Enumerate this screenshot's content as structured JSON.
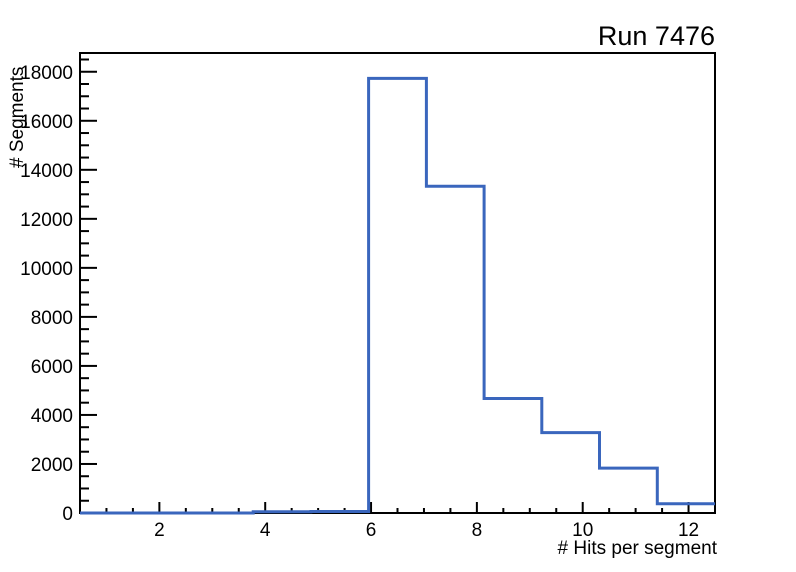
{
  "chart_data": {
    "type": "bar",
    "style": "step-histogram-outline",
    "title": "Run 7476",
    "xlabel": "# Hits per segment",
    "ylabel": "# Segments",
    "xlim": [
      0.5,
      12.5
    ],
    "ylim": [
      0,
      18765
    ],
    "bin_edges": [
      0.5,
      1.5909,
      2.6818,
      3.7727,
      4.8636,
      5.9545,
      7.0455,
      8.1364,
      9.2273,
      10.3182,
      11.4091,
      12.5
    ],
    "counts": [
      0,
      0,
      0,
      50,
      60,
      17730,
      13330,
      4670,
      3280,
      1830,
      380
    ],
    "x_major_ticks": [
      2,
      4,
      6,
      8,
      10,
      12
    ],
    "x_major_tick_labels": [
      "2",
      "4",
      "6",
      "8",
      "10",
      "12"
    ],
    "x_minor_tick_step": 0.5,
    "y_major_tick_step": 2000,
    "y_minor_tick_step": 500,
    "y_major_tick_labels": [
      "0",
      "2000",
      "4000",
      "6000",
      "8000",
      "10000",
      "12000",
      "14000",
      "16000",
      "18000"
    ],
    "line_color": "#3a66bd",
    "axis_color": "#000000",
    "background_color": "#ffffff",
    "grid": false,
    "legend": false
  }
}
